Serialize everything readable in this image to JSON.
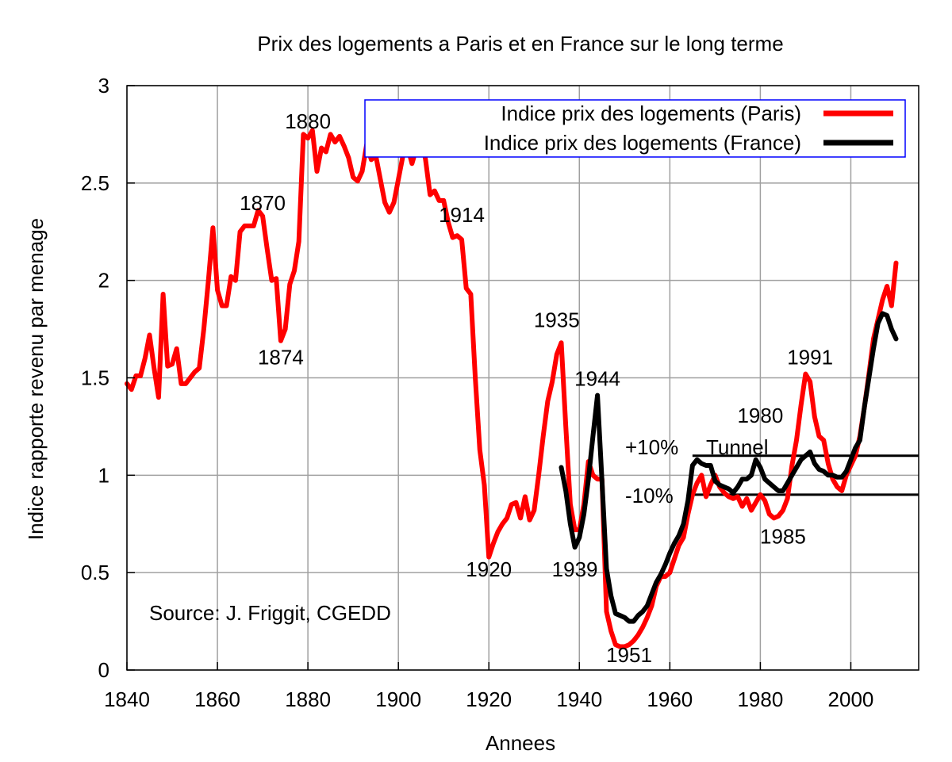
{
  "chart_data": {
    "type": "line",
    "title": "Prix des logements a Paris et en France sur le long terme",
    "xlabel": "Annees",
    "ylabel": "Indice rapporte revenu par menage",
    "xlim": [
      1840,
      2015
    ],
    "ylim": [
      0,
      3
    ],
    "grid": true,
    "legend_position": "top-right",
    "xticks": [
      "1840",
      "1860",
      "1880",
      "1900",
      "1920",
      "1940",
      "1960",
      "1980",
      "2000"
    ],
    "yticks": [
      "0",
      "0.5",
      "1",
      "1.5",
      "2",
      "2.5",
      "3"
    ],
    "source_text": "Source: J. Friggit, CGEDD",
    "tunnel": {
      "label": "Tunnel",
      "upper_label": "+10%",
      "lower_label": "-10%",
      "upper": 1.1,
      "lower": 0.9,
      "x_start": 1965,
      "x_end": 2015,
      "color": "#000000"
    },
    "annotations": [
      {
        "text": "1880",
        "x": 1880,
        "y": 2.78
      },
      {
        "text": "1870",
        "x": 1870,
        "y": 2.36
      },
      {
        "text": "1874",
        "x": 1874,
        "y": 1.57
      },
      {
        "text": "1914",
        "x": 1914,
        "y": 2.3
      },
      {
        "text": "1920",
        "x": 1920,
        "y": 0.48
      },
      {
        "text": "1935",
        "x": 1935,
        "y": 1.76
      },
      {
        "text": "1944",
        "x": 1944,
        "y": 1.46
      },
      {
        "text": "1939",
        "x": 1939,
        "y": 0.48
      },
      {
        "text": "1951",
        "x": 1951,
        "y": 0.04
      },
      {
        "text": "1980",
        "x": 1980,
        "y": 1.27
      },
      {
        "text": "1991",
        "x": 1991,
        "y": 1.57
      },
      {
        "text": "1985",
        "x": 1985,
        "y": 0.65
      }
    ],
    "series": [
      {
        "name": "Indice prix des logements (Paris)",
        "color": "#ff0000",
        "x": [
          1840,
          1841,
          1842,
          1843,
          1844,
          1845,
          1846,
          1847,
          1848,
          1849,
          1850,
          1851,
          1852,
          1853,
          1854,
          1855,
          1856,
          1857,
          1858,
          1859,
          1860,
          1861,
          1862,
          1863,
          1864,
          1865,
          1866,
          1867,
          1868,
          1869,
          1870,
          1871,
          1872,
          1873,
          1874,
          1875,
          1876,
          1877,
          1878,
          1879,
          1880,
          1881,
          1882,
          1883,
          1884,
          1885,
          1886,
          1887,
          1888,
          1889,
          1890,
          1891,
          1892,
          1893,
          1894,
          1895,
          1896,
          1897,
          1898,
          1899,
          1900,
          1901,
          1902,
          1903,
          1904,
          1905,
          1906,
          1907,
          1908,
          1909,
          1910,
          1911,
          1912,
          1913,
          1914,
          1915,
          1916,
          1917,
          1918,
          1919,
          1920,
          1921,
          1922,
          1923,
          1924,
          1925,
          1926,
          1927,
          1928,
          1929,
          1930,
          1931,
          1932,
          1933,
          1934,
          1935,
          1936,
          1937,
          1938,
          1939,
          1940,
          1941,
          1942,
          1943,
          1944,
          1945,
          1946,
          1947,
          1948,
          1949,
          1950,
          1951,
          1952,
          1953,
          1954,
          1955,
          1956,
          1957,
          1958,
          1959,
          1960,
          1961,
          1962,
          1963,
          1964,
          1965,
          1966,
          1967,
          1968,
          1969,
          1970,
          1971,
          1972,
          1973,
          1974,
          1975,
          1976,
          1977,
          1978,
          1979,
          1980,
          1981,
          1982,
          1983,
          1984,
          1985,
          1986,
          1987,
          1988,
          1989,
          1990,
          1991,
          1992,
          1993,
          1994,
          1995,
          1996,
          1997,
          1998,
          1999,
          2000,
          2001,
          2002,
          2003,
          2004,
          2005,
          2006,
          2007,
          2008,
          2009,
          2010
        ],
        "values": [
          1.47,
          1.44,
          1.51,
          1.51,
          1.6,
          1.72,
          1.55,
          1.4,
          1.93,
          1.56,
          1.57,
          1.65,
          1.47,
          1.47,
          1.5,
          1.53,
          1.55,
          1.75,
          2.0,
          2.27,
          1.95,
          1.87,
          1.87,
          2.02,
          2.0,
          2.25,
          2.28,
          2.28,
          2.28,
          2.36,
          2.33,
          2.16,
          2.0,
          2.01,
          1.69,
          1.75,
          1.98,
          2.05,
          2.2,
          2.75,
          2.73,
          2.77,
          2.56,
          2.68,
          2.66,
          2.75,
          2.71,
          2.74,
          2.69,
          2.63,
          2.53,
          2.51,
          2.56,
          2.7,
          2.62,
          2.64,
          2.52,
          2.4,
          2.35,
          2.4,
          2.52,
          2.64,
          2.69,
          2.6,
          2.68,
          2.75,
          2.62,
          2.44,
          2.46,
          2.41,
          2.41,
          2.3,
          2.22,
          2.23,
          2.21,
          1.96,
          1.93,
          1.5,
          1.13,
          0.95,
          0.58,
          0.65,
          0.71,
          0.75,
          0.78,
          0.85,
          0.86,
          0.78,
          0.89,
          0.77,
          0.82,
          1.0,
          1.2,
          1.38,
          1.48,
          1.62,
          1.68,
          1.25,
          0.85,
          0.72,
          0.72,
          0.85,
          1.07,
          1.0,
          0.98,
          0.98,
          0.3,
          0.2,
          0.13,
          0.12,
          0.12,
          0.13,
          0.15,
          0.18,
          0.22,
          0.27,
          0.33,
          0.43,
          0.48,
          0.48,
          0.5,
          0.57,
          0.64,
          0.68,
          0.8,
          0.9,
          0.96,
          1.0,
          0.89,
          0.95,
          1.0,
          0.94,
          0.91,
          0.89,
          0.88,
          0.89,
          0.84,
          0.88,
          0.82,
          0.86,
          0.9,
          0.87,
          0.8,
          0.78,
          0.79,
          0.82,
          0.88,
          1.05,
          1.18,
          1.36,
          1.52,
          1.48,
          1.3,
          1.2,
          1.18,
          1.06,
          0.98,
          0.94,
          0.92,
          1.0,
          1.05,
          1.1,
          1.2,
          1.35,
          1.52,
          1.7,
          1.8,
          1.9,
          1.97,
          1.87,
          2.09
        ]
      },
      {
        "name": "Indice prix des logements (France)",
        "color": "#000000",
        "x": [
          1936,
          1937,
          1938,
          1939,
          1940,
          1941,
          1942,
          1943,
          1944,
          1945,
          1946,
          1947,
          1948,
          1949,
          1950,
          1951,
          1952,
          1953,
          1954,
          1955,
          1956,
          1957,
          1958,
          1959,
          1960,
          1961,
          1962,
          1963,
          1964,
          1965,
          1966,
          1967,
          1968,
          1969,
          1970,
          1971,
          1972,
          1973,
          1974,
          1975,
          1976,
          1977,
          1978,
          1979,
          1980,
          1981,
          1982,
          1983,
          1984,
          1985,
          1986,
          1987,
          1988,
          1989,
          1990,
          1991,
          1992,
          1993,
          1994,
          1995,
          1996,
          1997,
          1998,
          1999,
          2000,
          2001,
          2002,
          2003,
          2004,
          2005,
          2006,
          2007,
          2008,
          2009,
          2010
        ],
        "values": [
          1.04,
          0.92,
          0.75,
          0.63,
          0.68,
          0.8,
          0.98,
          1.2,
          1.41,
          0.97,
          0.52,
          0.38,
          0.29,
          0.28,
          0.27,
          0.25,
          0.25,
          0.28,
          0.3,
          0.33,
          0.39,
          0.45,
          0.49,
          0.54,
          0.6,
          0.65,
          0.69,
          0.75,
          0.87,
          1.05,
          1.08,
          1.06,
          1.05,
          1.05,
          0.97,
          0.95,
          0.94,
          0.93,
          0.91,
          0.94,
          0.98,
          0.98,
          1.0,
          1.08,
          1.04,
          0.98,
          0.96,
          0.94,
          0.92,
          0.92,
          0.96,
          1.0,
          1.04,
          1.08,
          1.1,
          1.12,
          1.06,
          1.03,
          1.02,
          1.0,
          1.0,
          0.99,
          0.99,
          1.02,
          1.08,
          1.14,
          1.18,
          1.35,
          1.5,
          1.65,
          1.78,
          1.83,
          1.82,
          1.75,
          1.7
        ]
      }
    ]
  }
}
